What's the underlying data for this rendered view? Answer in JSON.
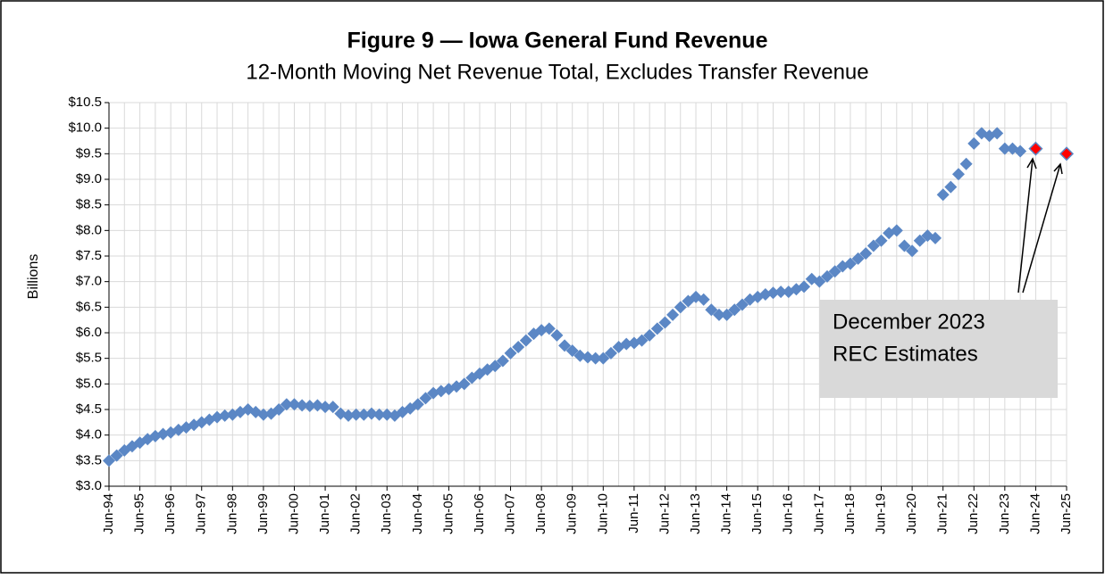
{
  "chart_data": {
    "type": "scatter",
    "title": "Figure 9 — Iowa General Fund Revenue",
    "subtitle": "12-Month Moving Net Revenue Total, Excludes Transfer Revenue",
    "y_label": "Billions",
    "annotation": [
      "December 2023",
      "REC Estimates"
    ],
    "categories": [
      "Jun-94",
      null,
      null,
      null,
      "Jun-95",
      null,
      null,
      null,
      "Jun-96",
      null,
      null,
      null,
      "Jun-97",
      null,
      null,
      null,
      "Jun-98",
      null,
      null,
      null,
      "Jun-99",
      null,
      null,
      null,
      "Jun-00",
      null,
      null,
      null,
      "Jun-01",
      null,
      null,
      null,
      "Jun-02",
      null,
      null,
      null,
      "Jun-03",
      null,
      null,
      null,
      "Jun-04",
      null,
      null,
      null,
      "Jun-05",
      null,
      null,
      null,
      "Jun-06",
      null,
      null,
      null,
      "Jun-07",
      null,
      null,
      null,
      "Jun-08",
      null,
      null,
      null,
      "Jun-09",
      null,
      null,
      null,
      "Jun-10",
      null,
      null,
      null,
      "Jun-11",
      null,
      null,
      null,
      "Jun-12",
      null,
      null,
      null,
      "Jun-13",
      null,
      null,
      null,
      "Jun-14",
      null,
      null,
      null,
      "Jun-15",
      null,
      null,
      null,
      "Jun-16",
      null,
      null,
      null,
      "Jun-17",
      null,
      null,
      null,
      "Jun-18",
      null,
      null,
      null,
      "Jun-19",
      null,
      null,
      null,
      "Jun-20",
      null,
      null,
      null,
      "Jun-21",
      null,
      null,
      null,
      "Jun-22",
      null,
      null,
      null,
      "Jun-23",
      null,
      null,
      null,
      "Jun-24",
      null,
      null,
      null,
      "Jun-25"
    ],
    "series": [
      {
        "color": "#5b87c5",
        "values": [
          3.5,
          3.6,
          3.7,
          3.78,
          3.85,
          3.92,
          3.98,
          4.02,
          4.05,
          4.1,
          4.15,
          4.2,
          4.25,
          4.3,
          4.35,
          4.38,
          4.4,
          4.45,
          4.5,
          4.45,
          4.4,
          4.42,
          4.5,
          4.6,
          4.6,
          4.58,
          4.57,
          4.58,
          4.55,
          4.55,
          4.42,
          4.38,
          4.4,
          4.4,
          4.42,
          4.4,
          4.4,
          4.38,
          4.45,
          4.52,
          4.6,
          4.72,
          4.82,
          4.86,
          4.9,
          4.95,
          5.0,
          5.12,
          5.2,
          5.28,
          5.35,
          5.45,
          5.6,
          5.72,
          5.85,
          5.98,
          6.05,
          6.08,
          5.95,
          5.75,
          5.65,
          5.55,
          5.52,
          5.5,
          5.5,
          5.6,
          5.72,
          5.78,
          5.8,
          5.85,
          5.95,
          6.08,
          6.2,
          6.35,
          6.5,
          6.62,
          6.7,
          6.65,
          6.45,
          6.35,
          6.35,
          6.45,
          6.55,
          6.65,
          6.7,
          6.75,
          6.78,
          6.8,
          6.8,
          6.85,
          6.9,
          7.05,
          7.0,
          7.1,
          7.2,
          7.3,
          7.35,
          7.45,
          7.55,
          7.7,
          7.8,
          7.95,
          8.0,
          7.7,
          7.6,
          7.8,
          7.9,
          7.85,
          8.7,
          8.85,
          9.1,
          9.3,
          9.7,
          9.9,
          9.85,
          9.9,
          9.6,
          9.6,
          9.55,
          null,
          null,
          null,
          null,
          null,
          null
        ]
      },
      {
        "color": "#ff0000",
        "values": [
          null,
          null,
          null,
          null,
          null,
          null,
          null,
          null,
          null,
          null,
          null,
          null,
          null,
          null,
          null,
          null,
          null,
          null,
          null,
          null,
          null,
          null,
          null,
          null,
          null,
          null,
          null,
          null,
          null,
          null,
          null,
          null,
          null,
          null,
          null,
          null,
          null,
          null,
          null,
          null,
          null,
          null,
          null,
          null,
          null,
          null,
          null,
          null,
          null,
          null,
          null,
          null,
          null,
          null,
          null,
          null,
          null,
          null,
          null,
          null,
          null,
          null,
          null,
          null,
          null,
          null,
          null,
          null,
          null,
          null,
          null,
          null,
          null,
          null,
          null,
          null,
          null,
          null,
          null,
          null,
          null,
          null,
          null,
          null,
          null,
          null,
          null,
          null,
          null,
          null,
          null,
          null,
          null,
          null,
          null,
          null,
          null,
          null,
          null,
          null,
          null,
          null,
          null,
          null,
          null,
          null,
          null,
          null,
          null,
          null,
          null,
          null,
          null,
          null,
          null,
          null,
          null,
          null,
          null,
          null,
          9.6,
          null,
          null,
          null,
          9.5
        ]
      }
    ],
    "ylim": [
      3.0,
      10.5
    ],
    "yticks": [
      {
        "value": 3.0,
        "label": "$3.0"
      },
      {
        "value": 3.5,
        "label": "$3.5"
      },
      {
        "value": 4.0,
        "label": "$4.0"
      },
      {
        "value": 4.5,
        "label": "$4.5"
      },
      {
        "value": 5.0,
        "label": "$5.0"
      },
      {
        "value": 5.5,
        "label": "$5.5"
      },
      {
        "value": 6.0,
        "label": "$6.0"
      },
      {
        "value": 6.5,
        "label": "$6.5"
      },
      {
        "value": 7.0,
        "label": "$7.0"
      },
      {
        "value": 7.5,
        "label": "$7.5"
      },
      {
        "value": 8.0,
        "label": "$8.0"
      },
      {
        "value": 8.5,
        "label": "$8.5"
      },
      {
        "value": 9.0,
        "label": "$9.0"
      },
      {
        "value": 9.5,
        "label": "$9.5"
      },
      {
        "value": 10.0,
        "label": "$10.0"
      },
      {
        "value": 10.5,
        "label": "$10.5"
      }
    ],
    "grid": true
  }
}
